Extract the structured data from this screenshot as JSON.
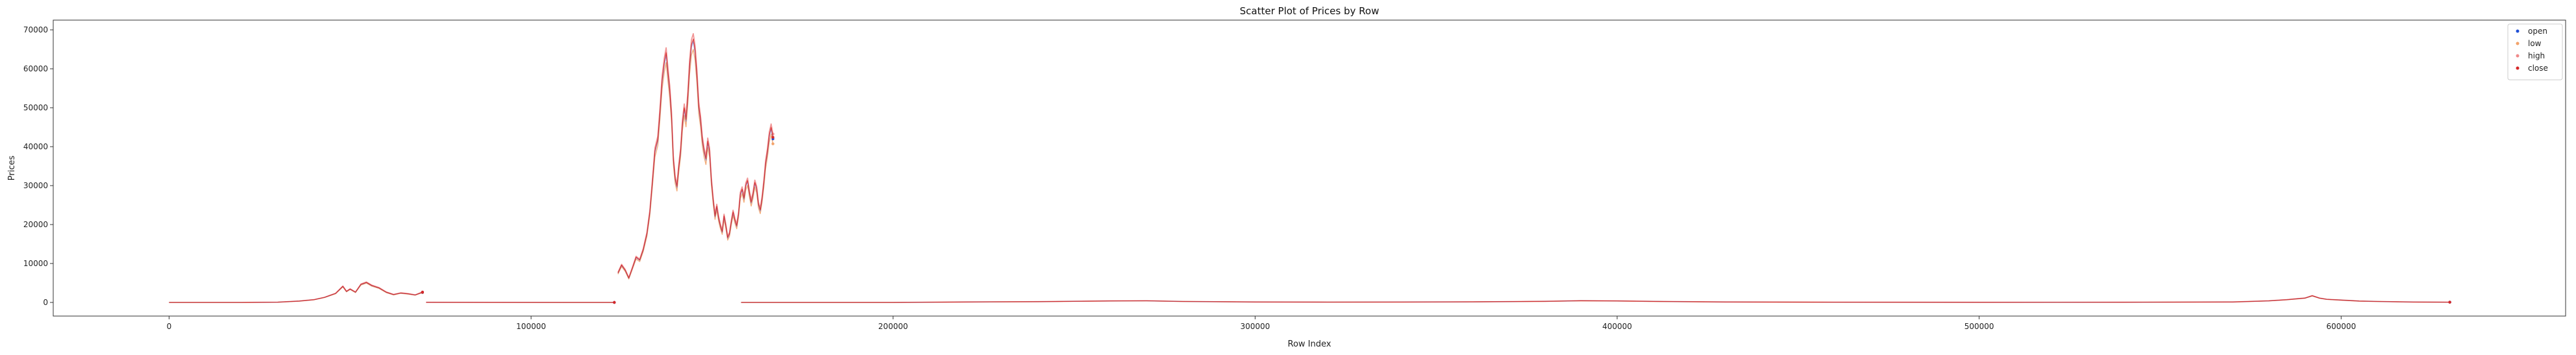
{
  "chart_data": {
    "type": "scatter",
    "title": "Scatter Plot of Prices by Row",
    "xlabel": "Row Index",
    "ylabel": "Prices",
    "xlim": [
      -32000,
      662000
    ],
    "ylim": [
      -3500,
      72500
    ],
    "xticks": [
      0,
      100000,
      200000,
      300000,
      400000,
      500000,
      600000
    ],
    "yticks": [
      0,
      10000,
      20000,
      30000,
      40000,
      50000,
      60000,
      70000
    ],
    "grid": false,
    "legend_position": "top-right",
    "series": [
      {
        "name": "open",
        "color": "#1f4fd6"
      },
      {
        "name": "low",
        "color": "#f2a36b"
      },
      {
        "name": "high",
        "color": "#f08a8a"
      },
      {
        "name": "close",
        "color": "#d62728"
      }
    ],
    "segments": [
      {
        "points": [
          [
            0,
            0
          ],
          [
            20000,
            0
          ],
          [
            30000,
            60
          ],
          [
            36000,
            350
          ],
          [
            40000,
            700
          ],
          [
            43000,
            1300
          ],
          [
            46000,
            2300
          ],
          [
            48000,
            4100
          ],
          [
            49000,
            2800
          ],
          [
            50000,
            3400
          ],
          [
            51500,
            2600
          ],
          [
            53000,
            4600
          ],
          [
            54500,
            5100
          ],
          [
            56000,
            4300
          ],
          [
            58000,
            3700
          ],
          [
            60000,
            2600
          ],
          [
            62000,
            2000
          ],
          [
            64000,
            2400
          ],
          [
            66000,
            2200
          ],
          [
            68000,
            1900
          ],
          [
            70000,
            2600
          ]
        ]
      },
      {
        "points": [
          [
            71000,
            30
          ],
          [
            90000,
            20
          ],
          [
            110000,
            0
          ],
          [
            123000,
            0
          ]
        ]
      },
      {
        "points": [
          [
            124000,
            7500
          ],
          [
            125000,
            9500
          ],
          [
            126000,
            8200
          ],
          [
            127000,
            6200
          ],
          [
            128000,
            8800
          ],
          [
            129000,
            11500
          ],
          [
            130000,
            10800
          ],
          [
            131000,
            13500
          ],
          [
            132000,
            17500
          ],
          [
            132800,
            23000
          ],
          [
            133500,
            30500
          ],
          [
            134200,
            38500
          ],
          [
            135000,
            41500
          ],
          [
            135600,
            48500
          ],
          [
            136200,
            56500
          ],
          [
            136800,
            61000
          ],
          [
            137300,
            63500
          ],
          [
            137800,
            58500
          ],
          [
            138300,
            54000
          ],
          [
            138800,
            47500
          ],
          [
            139300,
            36500
          ],
          [
            139800,
            31500
          ],
          [
            140300,
            29500
          ],
          [
            140800,
            34500
          ],
          [
            141300,
            38500
          ],
          [
            141800,
            45500
          ],
          [
            142300,
            49500
          ],
          [
            142800,
            46500
          ],
          [
            143300,
            52500
          ],
          [
            143800,
            60500
          ],
          [
            144300,
            65500
          ],
          [
            144800,
            67000
          ],
          [
            145300,
            64000
          ],
          [
            145800,
            58000
          ],
          [
            146300,
            50000
          ],
          [
            146800,
            46500
          ],
          [
            147300,
            41500
          ],
          [
            147800,
            38500
          ],
          [
            148300,
            36500
          ],
          [
            148800,
            41000
          ],
          [
            149300,
            38500
          ],
          [
            149800,
            31000
          ],
          [
            150300,
            26000
          ],
          [
            150800,
            22000
          ],
          [
            151300,
            24500
          ],
          [
            151800,
            21500
          ],
          [
            152300,
            19500
          ],
          [
            152800,
            18000
          ],
          [
            153300,
            22000
          ],
          [
            153800,
            19500
          ],
          [
            154300,
            16500
          ],
          [
            154800,
            17500
          ],
          [
            155300,
            20500
          ],
          [
            155800,
            23000
          ],
          [
            156300,
            21000
          ],
          [
            156800,
            19500
          ],
          [
            157300,
            22500
          ],
          [
            157800,
            27500
          ],
          [
            158300,
            28800
          ],
          [
            158800,
            26500
          ],
          [
            159300,
            29800
          ],
          [
            159800,
            31000
          ],
          [
            160300,
            28000
          ],
          [
            160800,
            25500
          ],
          [
            161300,
            27500
          ],
          [
            161800,
            30500
          ],
          [
            162300,
            29000
          ],
          [
            162800,
            25000
          ],
          [
            163300,
            23500
          ],
          [
            163800,
            26500
          ],
          [
            164300,
            30500
          ],
          [
            164800,
            35500
          ],
          [
            165300,
            38500
          ],
          [
            165800,
            42500
          ],
          [
            166300,
            44500
          ],
          [
            166800,
            42000
          ]
        ]
      },
      {
        "points": [
          [
            158000,
            0
          ],
          [
            200000,
            0
          ],
          [
            220000,
            120
          ],
          [
            240000,
            200
          ],
          [
            260000,
            380
          ],
          [
            270000,
            420
          ],
          [
            280000,
            250
          ],
          [
            300000,
            120
          ],
          [
            320000,
            80
          ],
          [
            340000,
            100
          ],
          [
            360000,
            150
          ],
          [
            380000,
            280
          ],
          [
            390000,
            430
          ],
          [
            400000,
            380
          ],
          [
            410000,
            260
          ],
          [
            430000,
            120
          ],
          [
            460000,
            60
          ],
          [
            500000,
            40
          ],
          [
            540000,
            50
          ],
          [
            570000,
            120
          ],
          [
            580000,
            400
          ],
          [
            585000,
            700
          ],
          [
            590000,
            1100
          ],
          [
            592000,
            1700
          ],
          [
            594000,
            1100
          ],
          [
            596000,
            800
          ],
          [
            600000,
            600
          ],
          [
            605000,
            350
          ],
          [
            610000,
            250
          ],
          [
            620000,
            100
          ],
          [
            630000,
            60
          ]
        ]
      }
    ]
  }
}
